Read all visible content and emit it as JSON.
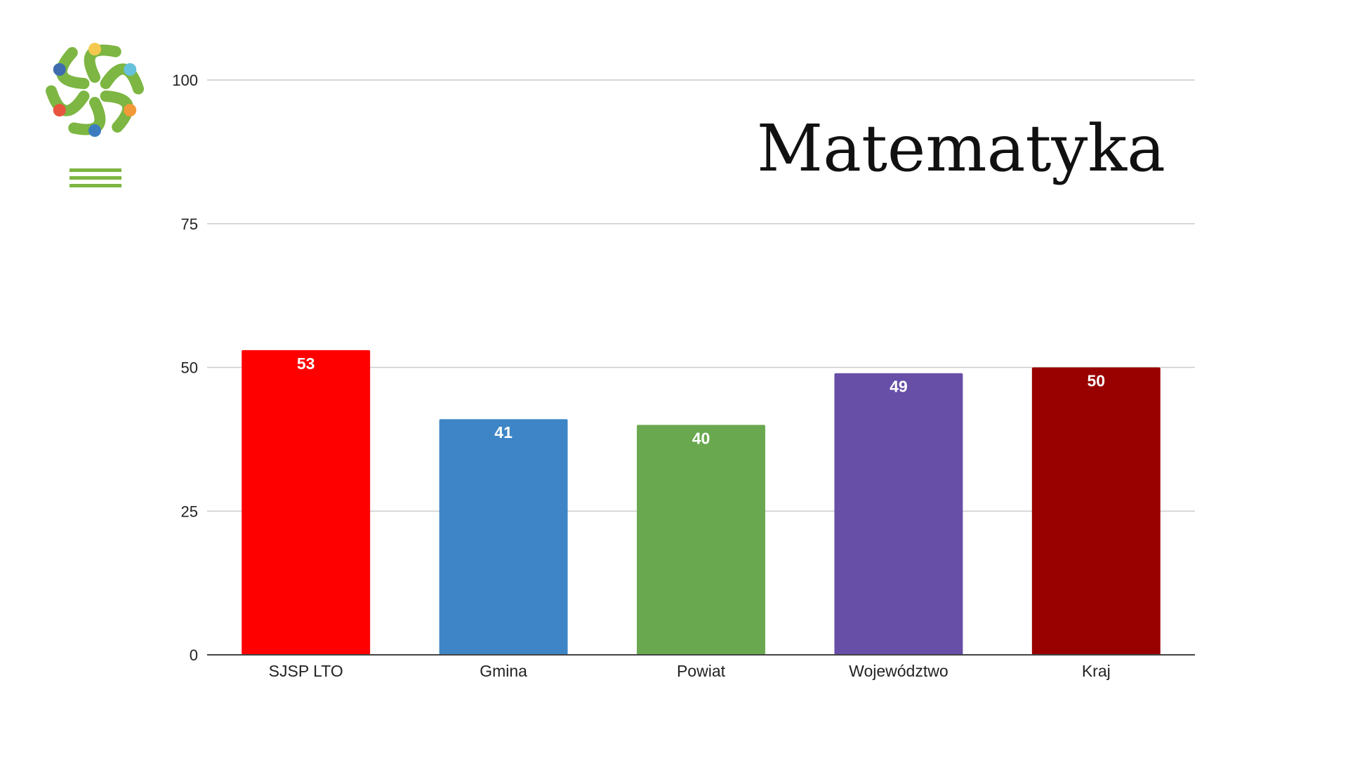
{
  "logo": {
    "name": "flower-logo",
    "colors": {
      "green": "#7DB642",
      "yellow": "#F4C94E",
      "light_blue": "#66C1DD",
      "orange": "#F39A38",
      "blue": "#3D7DBF",
      "red": "#E8543E",
      "dark_blue": "#3F6BAF"
    }
  },
  "chart_data": {
    "type": "bar",
    "title": "Matematyka",
    "categories": [
      "SJSP LTO",
      "Gmina",
      "Powiat",
      "Województwo",
      "Kraj"
    ],
    "values": [
      53,
      41,
      40,
      49,
      50
    ],
    "colors": [
      "#FF0000",
      "#3D85C6",
      "#6AA84F",
      "#674EA7",
      "#990000"
    ],
    "ylim": [
      0,
      100
    ],
    "yticks": [
      0,
      25,
      50,
      75,
      100
    ],
    "xlabel": "",
    "ylabel": "",
    "grid": true,
    "legend": "none"
  }
}
